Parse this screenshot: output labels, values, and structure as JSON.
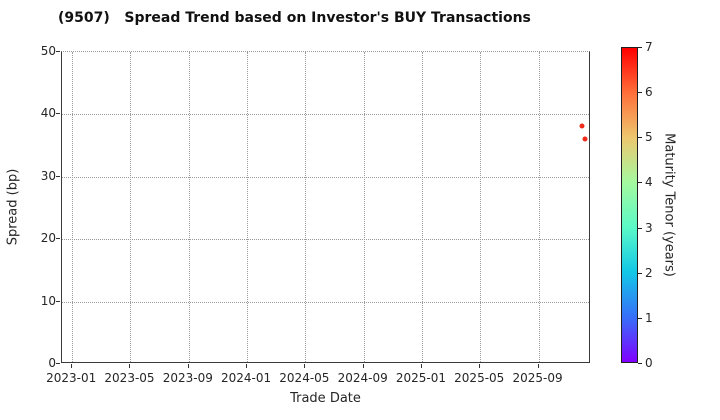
{
  "chart_data": {
    "type": "scatter",
    "title": "(9507)   Spread Trend based on Investor's BUY Transactions",
    "xlabel": "Trade Date",
    "ylabel": "Spread (bp)",
    "ylim": [
      0,
      50
    ],
    "yticks": [
      0,
      10,
      20,
      30,
      40,
      50
    ],
    "xticks": [
      "2023-01",
      "2023-05",
      "2023-09",
      "2024-01",
      "2024-05",
      "2024-09",
      "2025-01",
      "2025-05",
      "2025-09"
    ],
    "x_range_months_from_2023_01": [
      -0.7,
      35.6
    ],
    "grid": true,
    "grid_style": "dotted",
    "points": [
      {
        "date": "2025-11-30",
        "spread_bp": 38.1,
        "maturity_tenor_years": 7.0
      },
      {
        "date": "2025-12-06",
        "spread_bp": 36.1,
        "maturity_tenor_years": 7.0
      }
    ],
    "point_color": "#f22b1c",
    "colorbar": {
      "label": "Maturity Tenor (years)",
      "min": 0,
      "max": 7,
      "ticks": [
        0,
        1,
        2,
        3,
        4,
        5,
        6,
        7
      ],
      "colormap": "rainbow",
      "gradient_stops": [
        "#8000ff",
        "#376ff9",
        "#12c7e6",
        "#5bf9c7",
        "#a4f99f",
        "#edc76f",
        "#ff6f39",
        "#ff0000"
      ]
    }
  }
}
